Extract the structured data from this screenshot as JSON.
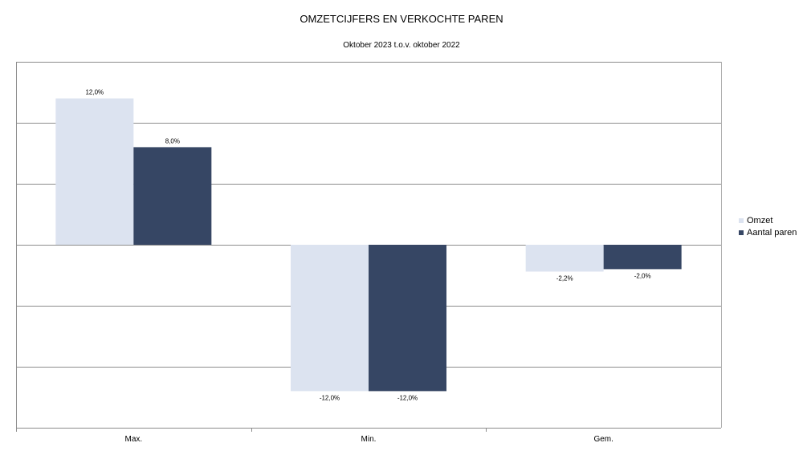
{
  "chart_data": {
    "type": "bar",
    "title": "OMZETCIJFERS EN VERKOCHTE PAREN",
    "subtitle": "Oktober 2023 t.o.v. oktober 2022",
    "categories": [
      "Max.",
      "Min.",
      "Gem."
    ],
    "series": [
      {
        "name": "Omzet",
        "values": [
          12.0,
          -12.0,
          -2.2
        ],
        "labels": [
          "12,0%",
          "-12,0%",
          "-2,2%"
        ],
        "color": "#dce3f0"
      },
      {
        "name": "Aantal paren",
        "values": [
          8.0,
          -12.0,
          -2.0
        ],
        "labels": [
          "8,0%",
          "-12,0%",
          "-2,0%"
        ],
        "color": "#364664"
      }
    ],
    "ylim": [
      -15,
      15
    ],
    "y_gridlines": [
      15,
      10,
      5,
      0,
      -5,
      -10,
      -15
    ],
    "grid": true,
    "legend": "right"
  }
}
